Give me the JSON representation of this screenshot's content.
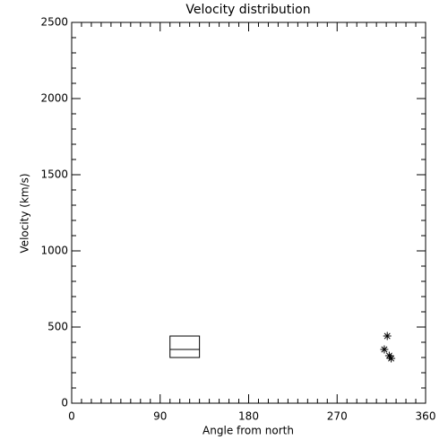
{
  "chart_data": {
    "type": "scatter",
    "title": "Velocity distribution",
    "x_label": "Angle from north",
    "y_label": "Velocity (km/s)",
    "x": [
      321,
      318,
      323,
      325
    ],
    "y": [
      441,
      353,
      312,
      294
    ],
    "color": "#000000",
    "box": {
      "x0": 100,
      "x1": 130,
      "low": 300,
      "median": 353,
      "high": 441
    },
    "xlim": [
      0,
      360
    ],
    "xticks": [
      0,
      90,
      180,
      270,
      360
    ],
    "xminor": 9,
    "ylim": [
      0,
      2500
    ],
    "yticks": [
      0,
      500,
      1000,
      1500,
      2000,
      2500
    ],
    "yminor": 5
  }
}
